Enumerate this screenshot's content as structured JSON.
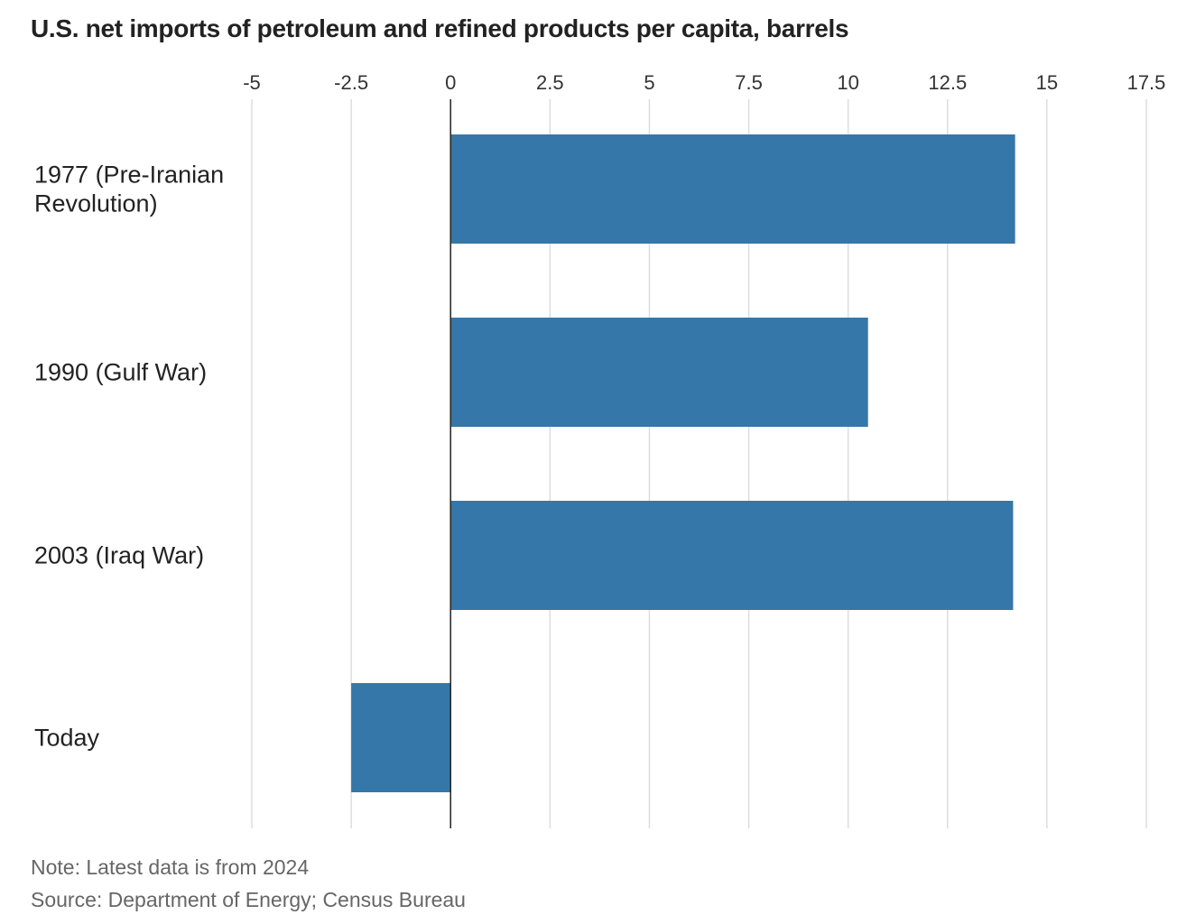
{
  "chart_data": {
    "type": "bar",
    "orientation": "horizontal",
    "title": "U.S. net imports of petroleum and refined products per capita, barrels",
    "categories": [
      [
        "1977 (Pre-Iranian",
        "Revolution)"
      ],
      [
        "1990 (Gulf War)"
      ],
      [
        "2003 (Iraq War)"
      ],
      [
        "Today"
      ]
    ],
    "values": [
      14.2,
      10.5,
      14.15,
      -2.5
    ],
    "xlim": [
      -5,
      17.5
    ],
    "xticks": [
      -5,
      -2.5,
      0,
      2.5,
      5,
      7.5,
      10,
      12.5,
      15,
      17.5
    ],
    "xtick_labels": [
      "-5",
      "-2.5",
      "0",
      "2.5",
      "5",
      "7.5",
      "10",
      "12.5",
      "15",
      "17.5"
    ],
    "bar_color": "#3577a8",
    "grid": true,
    "gridline_color": "#dddddd",
    "zero_line_color": "#222222",
    "axis_position": "top"
  },
  "footer": {
    "note": "Note: Latest data is from 2024",
    "source": "Source: Department of Energy; Census Bureau"
  }
}
